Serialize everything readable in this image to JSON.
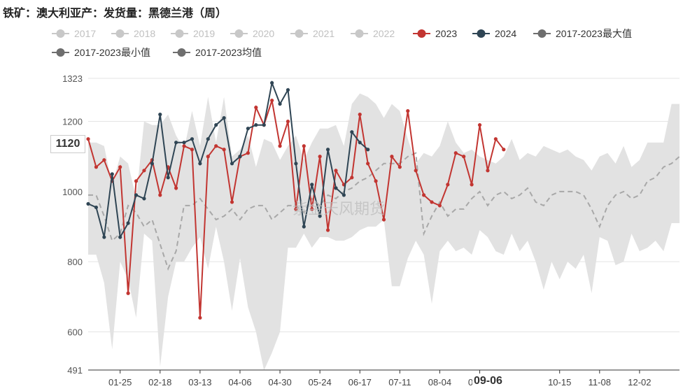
{
  "title": "铁矿：澳大利亚产：发货量：黑德兰港（周）",
  "watermark": "紫金天风期货",
  "hover": {
    "value": "1120",
    "date": "09-06"
  },
  "colors": {
    "grid": "#e3e3e3",
    "range_fill": "#e2e2e2",
    "inactive": "#c8c8c8",
    "s2023": "#c23531",
    "s2024": "#2f4554",
    "max": "#6e6e6e",
    "min": "#6e6e6e",
    "avg": "#a8a8a8"
  },
  "chart_data": {
    "type": "line",
    "title": "铁矿：澳大利亚产：发货量：黑德兰港（周）",
    "xlabel": "",
    "ylabel": "",
    "ylim": [
      491,
      1323
    ],
    "yticks": [
      491,
      600,
      800,
      1000,
      1200,
      1323
    ],
    "xticks": [
      "01-25",
      "02-18",
      "03-13",
      "04-06",
      "04-30",
      "05-24",
      "06-17",
      "07-11",
      "08-04",
      "09-06",
      "10-15",
      "11-08",
      "12-02"
    ],
    "xtick_index": [
      4,
      9,
      14,
      19,
      24,
      29,
      34,
      39,
      44,
      49,
      59,
      64,
      69
    ],
    "grid": true,
    "legend_position": "top",
    "legend": [
      {
        "name": "2017",
        "active": false
      },
      {
        "name": "2018",
        "active": false
      },
      {
        "name": "2019",
        "active": false
      },
      {
        "name": "2020",
        "active": false
      },
      {
        "name": "2021",
        "active": false
      },
      {
        "name": "2022",
        "active": false
      },
      {
        "name": "2023",
        "active": true
      },
      {
        "name": "2024",
        "active": true
      },
      {
        "name": "2017-2023最大值",
        "active": true
      },
      {
        "name": "2017-2023最小值",
        "active": true
      },
      {
        "name": "2017-2023均值",
        "active": true
      }
    ],
    "weeks": 75,
    "series": [
      {
        "name": "2023",
        "values": [
          1150,
          1070,
          1090,
          1030,
          1070,
          710,
          1030,
          1060,
          1090,
          990,
          1070,
          1010,
          1130,
          1120,
          640,
          1100,
          1130,
          1120,
          970,
          1100,
          1110,
          1240,
          1190,
          1260,
          1130,
          1200,
          950,
          1130,
          950,
          1100,
          890,
          1060,
          1020,
          1040,
          1220,
          1080,
          1030,
          920,
          1100,
          1070,
          1230,
          1060,
          990,
          970,
          960,
          1020,
          1110,
          1100,
          1020,
          1190,
          1060,
          1150,
          1120
        ]
      },
      {
        "name": "2024",
        "values": [
          965,
          955,
          870,
          1050,
          870,
          910,
          990,
          980,
          1080,
          1220,
          1040,
          1140,
          1140,
          1150,
          1080,
          1150,
          1190,
          1210,
          1080,
          1100,
          1180,
          1190,
          1190,
          1310,
          1250,
          1290,
          1080,
          900,
          1020,
          930,
          1120,
          1010,
          990,
          1170,
          1140,
          1120
        ]
      },
      {
        "name": "2017-2023最大值",
        "values": [
          1140,
          1140,
          1130,
          1020,
          1100,
          1080,
          980,
          1200,
          1190,
          1190,
          1220,
          1160,
          1120,
          1230,
          1130,
          1270,
          1140,
          1270,
          1100,
          1120,
          1160,
          1070,
          1150,
          1140,
          1090,
          1130,
          1160,
          1090,
          1140,
          1180,
          1180,
          1190,
          1130,
          1250,
          1280,
          1270,
          1250,
          1210,
          1250,
          1230,
          1150,
          1080,
          1110,
          1100,
          1130,
          1200,
          1140,
          1110,
          1120,
          1100,
          1090,
          1080,
          1100,
          1150,
          1090,
          1110,
          1100,
          1130,
          1120,
          1110,
          1120,
          1100,
          1090,
          1060,
          1100,
          1110,
          1080,
          1130,
          1070,
          1090,
          1140,
          1140,
          1140,
          1250,
          1250
        ]
      },
      {
        "name": "2017-2023最小值",
        "values": [
          820,
          820,
          740,
          550,
          800,
          750,
          640,
          880,
          860,
          500,
          700,
          800,
          800,
          840,
          870,
          780,
          900,
          800,
          660,
          810,
          670,
          600,
          490,
          540,
          600,
          840,
          840,
          880,
          840,
          870,
          870,
          860,
          860,
          870,
          890,
          900,
          900,
          920,
          730,
          730,
          810,
          860,
          820,
          680,
          830,
          860,
          830,
          840,
          820,
          890,
          870,
          830,
          820,
          880,
          830,
          860,
          800,
          720,
          800,
          750,
          800,
          780,
          820,
          710,
          870,
          860,
          790,
          800,
          880,
          830,
          840,
          860,
          830,
          910,
          910
        ]
      },
      {
        "name": "2017-2023均值",
        "values": [
          990,
          990,
          930,
          860,
          880,
          960,
          940,
          900,
          920,
          850,
          780,
          830,
          960,
          960,
          980,
          950,
          920,
          930,
          950,
          920,
          950,
          960,
          960,
          920,
          940,
          960,
          960,
          940,
          980,
          960,
          990,
          980,
          1000,
          1010,
          1030,
          1040,
          1060,
          1080,
          1080,
          1080,
          1100,
          1110,
          880,
          930,
          970,
          930,
          950,
          950,
          980,
          1000,
          960,
          990,
          1000,
          980,
          990,
          1010,
          970,
          960,
          990,
          1000,
          1000,
          1000,
          990,
          950,
          900,
          960,
          990,
          1000,
          980,
          990,
          1030,
          1040,
          1070,
          1080,
          1100
        ]
      }
    ]
  }
}
